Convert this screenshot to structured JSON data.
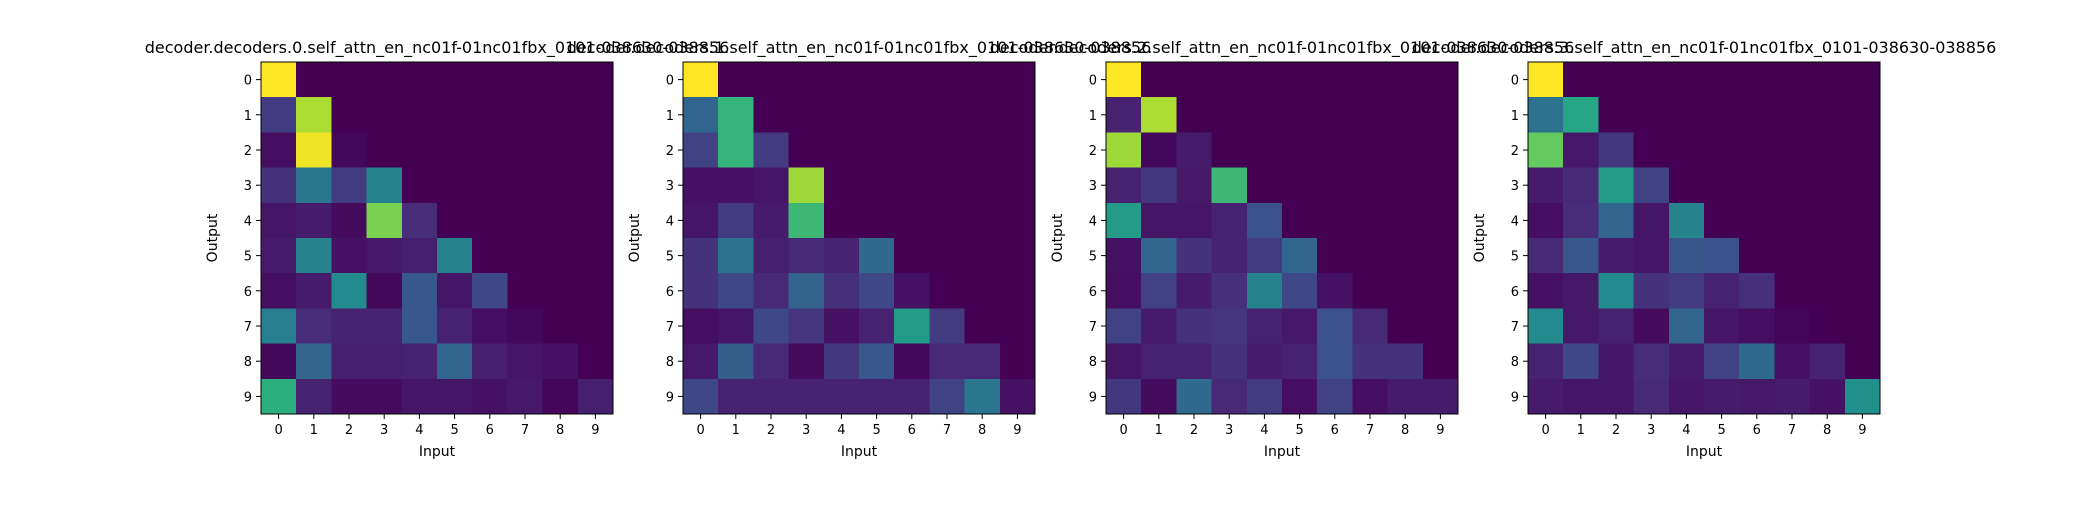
{
  "chart_data": [
    {
      "type": "heatmap",
      "title": "decoder.decoders.0.self_attn_en_nc01f-01nc01fbx_0101-038630-038856",
      "xlabel": "Input",
      "ylabel": "Output",
      "x_ticks": [
        "0",
        "1",
        "2",
        "3",
        "4",
        "5",
        "6",
        "7",
        "8",
        "9"
      ],
      "y_ticks": [
        "0",
        "1",
        "2",
        "3",
        "4",
        "5",
        "6",
        "7",
        "8",
        "9"
      ],
      "colormap": "viridis",
      "values": [
        [
          1.0,
          0,
          0,
          0,
          0,
          0,
          0,
          0,
          0,
          0
        ],
        [
          0.18,
          0.88,
          0,
          0,
          0,
          0,
          0,
          0,
          0,
          0
        ],
        [
          0.04,
          0.98,
          0.02,
          0,
          0,
          0,
          0,
          0,
          0,
          0
        ],
        [
          0.15,
          0.4,
          0.18,
          0.45,
          0,
          0,
          0,
          0,
          0,
          0
        ],
        [
          0.06,
          0.08,
          0.03,
          0.8,
          0.13,
          0,
          0,
          0,
          0,
          0
        ],
        [
          0.08,
          0.45,
          0.05,
          0.07,
          0.09,
          0.45,
          0,
          0,
          0,
          0
        ],
        [
          0.04,
          0.08,
          0.48,
          0.02,
          0.28,
          0.06,
          0.22,
          0,
          0,
          0
        ],
        [
          0.43,
          0.13,
          0.1,
          0.1,
          0.28,
          0.1,
          0.04,
          0.02,
          0,
          0
        ],
        [
          0.02,
          0.33,
          0.09,
          0.09,
          0.1,
          0.33,
          0.09,
          0.06,
          0.05,
          0
        ],
        [
          0.64,
          0.1,
          0.03,
          0.03,
          0.06,
          0.06,
          0.05,
          0.07,
          0.01,
          0.09
        ]
      ]
    },
    {
      "type": "heatmap",
      "title": "decoder.decoders.1.self_attn_en_nc01f-01nc01fbx_0101-038630-038856",
      "xlabel": "Input",
      "ylabel": "Output",
      "x_ticks": [
        "0",
        "1",
        "2",
        "3",
        "4",
        "5",
        "6",
        "7",
        "8",
        "9"
      ],
      "y_ticks": [
        "0",
        "1",
        "2",
        "3",
        "4",
        "5",
        "6",
        "7",
        "8",
        "9"
      ],
      "colormap": "viridis",
      "values": [
        [
          1.0,
          0,
          0,
          0,
          0,
          0,
          0,
          0,
          0,
          0
        ],
        [
          0.33,
          0.66,
          0,
          0,
          0,
          0,
          0,
          0,
          0,
          0
        ],
        [
          0.2,
          0.66,
          0.18,
          0,
          0,
          0,
          0,
          0,
          0,
          0
        ],
        [
          0.05,
          0.05,
          0.06,
          0.86,
          0,
          0,
          0,
          0,
          0,
          0
        ],
        [
          0.06,
          0.18,
          0.08,
          0.68,
          0,
          0,
          0,
          0,
          0,
          0
        ],
        [
          0.15,
          0.38,
          0.09,
          0.12,
          0.1,
          0.35,
          0,
          0,
          0,
          0
        ],
        [
          0.15,
          0.22,
          0.12,
          0.32,
          0.14,
          0.22,
          0.05,
          0,
          0,
          0
        ],
        [
          0.04,
          0.06,
          0.22,
          0.16,
          0.05,
          0.1,
          0.55,
          0.18,
          0,
          0
        ],
        [
          0.07,
          0.3,
          0.12,
          0.03,
          0.17,
          0.28,
          0.02,
          0.12,
          0.12,
          0
        ],
        [
          0.22,
          0.1,
          0.1,
          0.1,
          0.1,
          0.1,
          0.1,
          0.2,
          0.4,
          0.05
        ]
      ]
    },
    {
      "type": "heatmap",
      "title": "decoder.decoders.2.self_attn_en_nc01f-01nc01fbx_0101-038630-038856",
      "xlabel": "Input",
      "ylabel": "Output",
      "x_ticks": [
        "0",
        "1",
        "2",
        "3",
        "4",
        "5",
        "6",
        "7",
        "8",
        "9"
      ],
      "y_ticks": [
        "0",
        "1",
        "2",
        "3",
        "4",
        "5",
        "6",
        "7",
        "8",
        "9"
      ],
      "colormap": "viridis",
      "values": [
        [
          1.0,
          0,
          0,
          0,
          0,
          0,
          0,
          0,
          0,
          0
        ],
        [
          0.1,
          0.88,
          0,
          0,
          0,
          0,
          0,
          0,
          0,
          0
        ],
        [
          0.86,
          0.02,
          0.08,
          0,
          0,
          0,
          0,
          0,
          0,
          0
        ],
        [
          0.1,
          0.17,
          0.07,
          0.68,
          0,
          0,
          0,
          0,
          0,
          0
        ],
        [
          0.55,
          0.06,
          0.06,
          0.1,
          0.25,
          0,
          0,
          0,
          0,
          0
        ],
        [
          0.05,
          0.33,
          0.15,
          0.1,
          0.18,
          0.33,
          0,
          0,
          0,
          0
        ],
        [
          0.04,
          0.2,
          0.08,
          0.14,
          0.45,
          0.22,
          0.05,
          0,
          0,
          0
        ],
        [
          0.2,
          0.08,
          0.15,
          0.16,
          0.1,
          0.07,
          0.25,
          0.12,
          0,
          0
        ],
        [
          0.06,
          0.1,
          0.1,
          0.15,
          0.08,
          0.1,
          0.25,
          0.15,
          0.15,
          0
        ],
        [
          0.17,
          0.03,
          0.35,
          0.12,
          0.18,
          0.04,
          0.2,
          0.04,
          0.08,
          0.08
        ]
      ]
    },
    {
      "type": "heatmap",
      "title": "decoder.decoders.3.self_attn_en_nc01f-01nc01fbx_0101-038630-038856",
      "xlabel": "Input",
      "ylabel": "Output",
      "x_ticks": [
        "0",
        "1",
        "2",
        "3",
        "4",
        "5",
        "6",
        "7",
        "8",
        "9"
      ],
      "y_ticks": [
        "0",
        "1",
        "2",
        "3",
        "4",
        "5",
        "6",
        "7",
        "8",
        "9"
      ],
      "colormap": "viridis",
      "values": [
        [
          1.0,
          0,
          0,
          0,
          0,
          0,
          0,
          0,
          0,
          0
        ],
        [
          0.38,
          0.6,
          0,
          0,
          0,
          0,
          0,
          0,
          0,
          0
        ],
        [
          0.76,
          0.07,
          0.17,
          0,
          0,
          0,
          0,
          0,
          0,
          0
        ],
        [
          0.08,
          0.12,
          0.55,
          0.2,
          0,
          0,
          0,
          0,
          0,
          0
        ],
        [
          0.04,
          0.13,
          0.33,
          0.06,
          0.45,
          0,
          0,
          0,
          0,
          0
        ],
        [
          0.12,
          0.28,
          0.08,
          0.06,
          0.27,
          0.25,
          0,
          0,
          0,
          0
        ],
        [
          0.05,
          0.07,
          0.48,
          0.15,
          0.18,
          0.1,
          0.14,
          0,
          0,
          0
        ],
        [
          0.48,
          0.07,
          0.1,
          0.03,
          0.33,
          0.06,
          0.04,
          0.01,
          0,
          0
        ],
        [
          0.1,
          0.22,
          0.06,
          0.13,
          0.08,
          0.2,
          0.35,
          0.05,
          0.1,
          0
        ],
        [
          0.08,
          0.06,
          0.06,
          0.12,
          0.06,
          0.08,
          0.07,
          0.08,
          0.05,
          0.5
        ]
      ]
    }
  ]
}
